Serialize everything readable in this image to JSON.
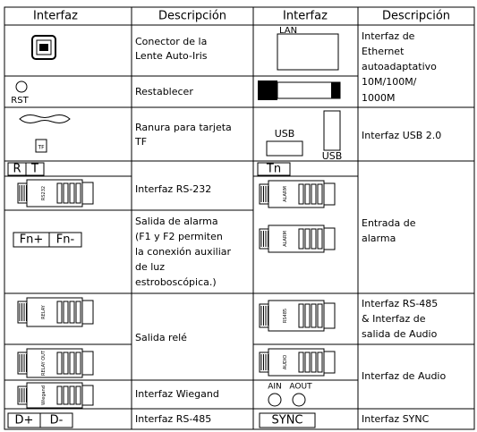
{
  "table": {
    "header": [
      "Interfaz",
      "Descripción",
      "Interfaz",
      "Descripción"
    ],
    "left_descriptions": [
      [
        "Conector de la",
        "Lente Auto-Iris"
      ],
      [
        "Restablecer"
      ],
      [
        "Ranura para tarjeta",
        "TF"
      ],
      [
        "Interfaz RS-232"
      ],
      [
        "Salida de alarma",
        "(F1 y F2 permiten",
        "la conexión auxiliar",
        "de luz",
        "estroboscópica.)"
      ],
      [
        "Salida relé"
      ],
      [
        "Interfaz Wiegand"
      ],
      [
        "Interfaz RS-485"
      ]
    ],
    "right_descriptions": [
      [
        "Interfaz de",
        "Ethernet",
        "autoadaptativo",
        "10M/100M/",
        "1000M"
      ],
      [
        "Interfaz USB 2.0"
      ],
      [
        "Entrada de",
        "alarma"
      ],
      [
        "Interfaz RS-485",
        "& Interfaz de",
        "salida de Audio"
      ],
      [
        "Interfaz de Audio"
      ],
      [
        "Interfaz SYNC"
      ]
    ],
    "icon_labels": {
      "rst": "RST",
      "tf": "TF",
      "r": "R",
      "t": "T",
      "fn_plus": "Fn+",
      "fn_minus": "Fn-",
      "d_plus": "D+",
      "d_minus": "D-",
      "lan": "LAN",
      "usb_1": "USB",
      "usb_2": "USB",
      "tn": "Tn",
      "ain": "AIN",
      "aout": "AOUT",
      "sync": "SYNC",
      "rs232": "RS232",
      "relay_1": "RELAY",
      "relay_2": "RELAY OUT",
      "wiegand": "Wiegand",
      "alarm_1": "ALARM",
      "rs485": "RS485",
      "audio": "AUDIO"
    }
  }
}
